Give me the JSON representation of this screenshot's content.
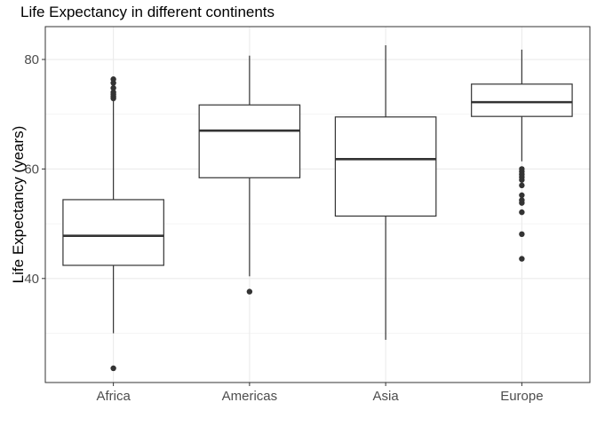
{
  "chart_data": {
    "type": "boxplot",
    "title": "Life Expectancy in different continents",
    "xlabel": "",
    "ylabel": "Life Expectancy (years)",
    "ylim": [
      21,
      86
    ],
    "yticks": [
      40,
      60,
      80
    ],
    "grid": true,
    "categories": [
      "Africa",
      "Americas",
      "Asia",
      "Europe"
    ],
    "boxes": [
      {
        "category": "Africa",
        "whisker_low": 30.0,
        "q1": 42.4,
        "median": 47.8,
        "q3": 54.4,
        "whisker_high": 72.8,
        "outliers": [
          23.6,
          72.9,
          73.2,
          73.6,
          74.0,
          74.8,
          75.7,
          76.4
        ]
      },
      {
        "category": "Americas",
        "whisker_low": 40.4,
        "q1": 58.4,
        "median": 67.0,
        "q3": 71.7,
        "whisker_high": 80.7,
        "outliers": [
          37.6
        ]
      },
      {
        "category": "Asia",
        "whisker_low": 28.8,
        "q1": 51.4,
        "median": 61.8,
        "q3": 69.5,
        "whisker_high": 82.6,
        "outliers": []
      },
      {
        "category": "Europe",
        "whisker_low": 61.4,
        "q1": 69.6,
        "median": 72.2,
        "q3": 75.5,
        "whisker_high": 81.8,
        "outliers": [
          43.6,
          48.1,
          52.1,
          53.8,
          54.3,
          55.2,
          57.0,
          58.0,
          58.5,
          59.0,
          59.5,
          60.0
        ]
      }
    ]
  }
}
